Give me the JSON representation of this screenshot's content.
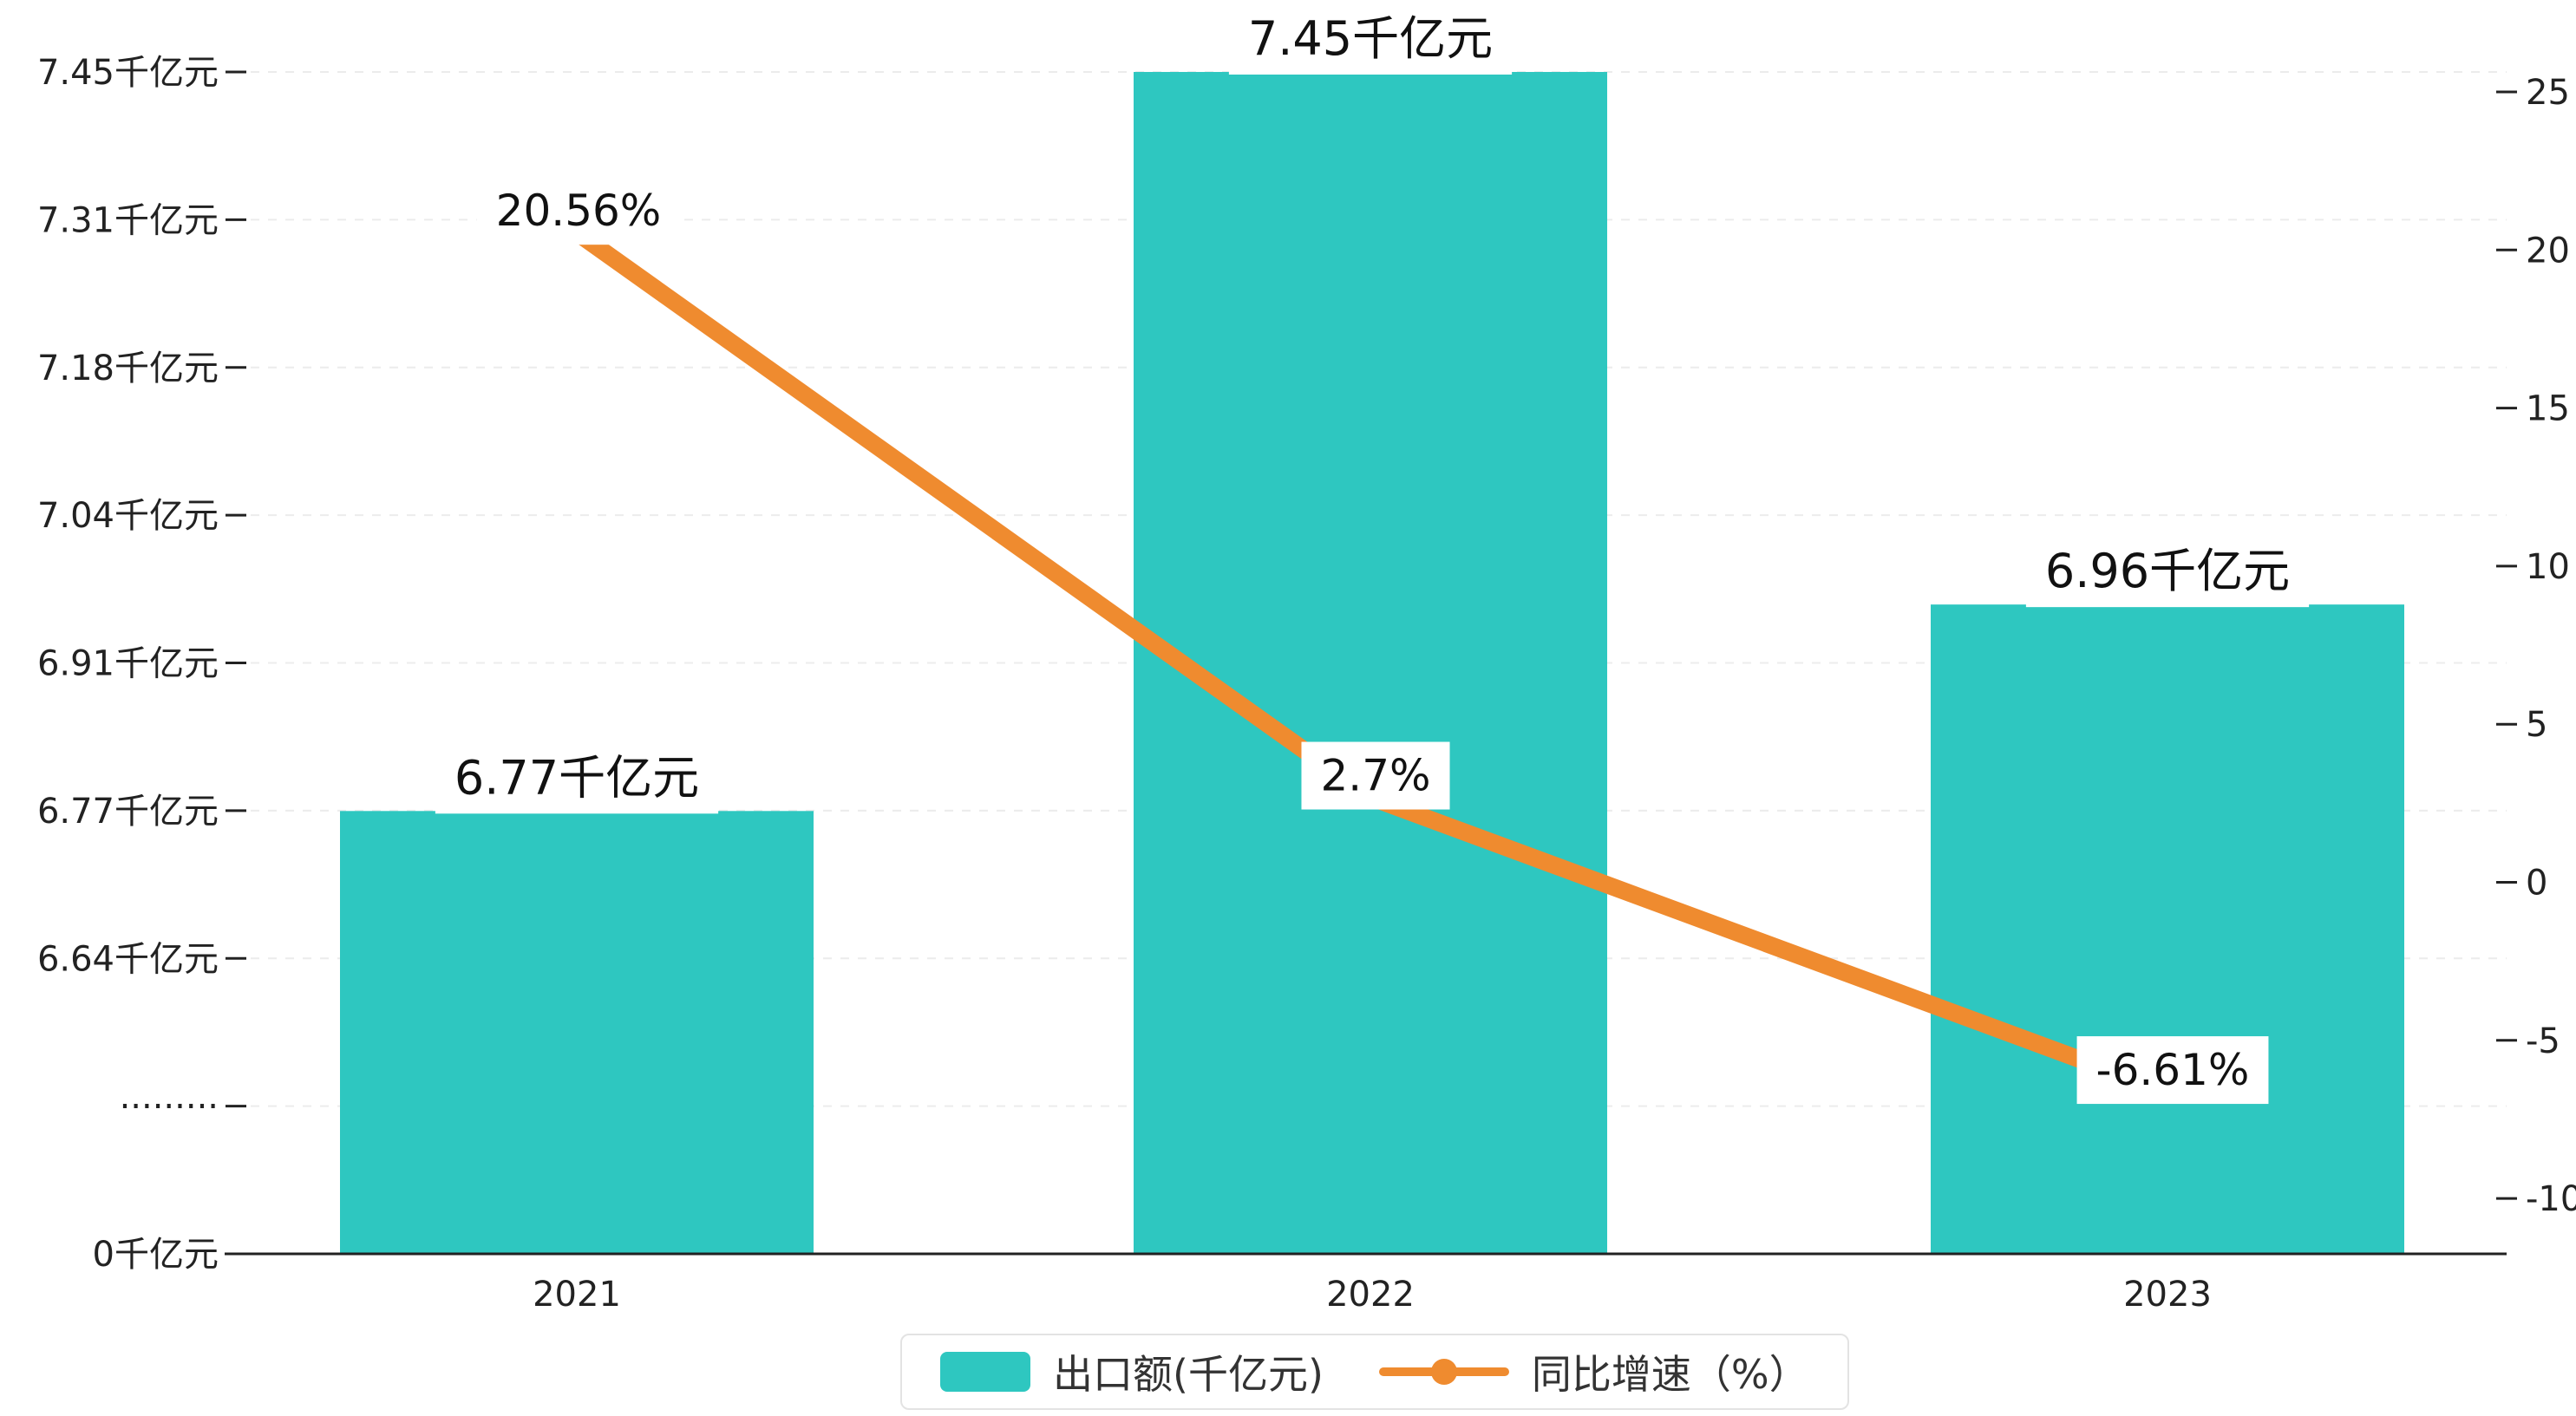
{
  "chart_data": {
    "type": "bar",
    "title": "",
    "categories": [
      "2021",
      "2022",
      "2023"
    ],
    "series": [
      {
        "name": "出口额(千亿元)",
        "type": "bar",
        "axis": "left",
        "unit": "千亿元",
        "values": [
          6.77,
          7.45,
          6.96
        ],
        "data_labels": [
          "6.77千亿元",
          "7.45千亿元",
          "6.96千亿元"
        ],
        "color": "#2ec7c0"
      },
      {
        "name": "同比增速（%）",
        "type": "line",
        "axis": "right",
        "unit": "%",
        "values": [
          20.56,
          2.7,
          -6.61
        ],
        "data_labels": [
          "20.56%",
          "2.7%",
          "-6.61%"
        ],
        "color": "#ef8b2f"
      }
    ],
    "left_axis": {
      "tick_labels": [
        "7.45千亿元",
        "7.31千亿元",
        "7.18千亿元",
        "7.04千亿元",
        "6.91千亿元",
        "6.77千亿元",
        "6.64千亿元",
        "·········",
        "0千亿元"
      ],
      "has_break": true
    },
    "right_axis": {
      "tick_labels": [
        "25",
        "20",
        "15",
        "10",
        "5",
        "0",
        "-5",
        "-10"
      ],
      "range": [
        -10,
        25
      ]
    },
    "legend": {
      "position": "bottom-center",
      "items": [
        {
          "label": "出口额(千亿元)",
          "marker": "bar-swatch",
          "color": "#2ec7c0"
        },
        {
          "label": "同比增速（%）",
          "marker": "line-dot",
          "color": "#ef8b2f"
        }
      ]
    },
    "grid": "dashed-horizontal"
  },
  "colors": {
    "bar": "#2ec7c0",
    "line": "#ef8b2f",
    "axis_text": "#222222",
    "gridline": "#ececec",
    "label_bg": "#ffffff",
    "background": "#ffffff"
  }
}
